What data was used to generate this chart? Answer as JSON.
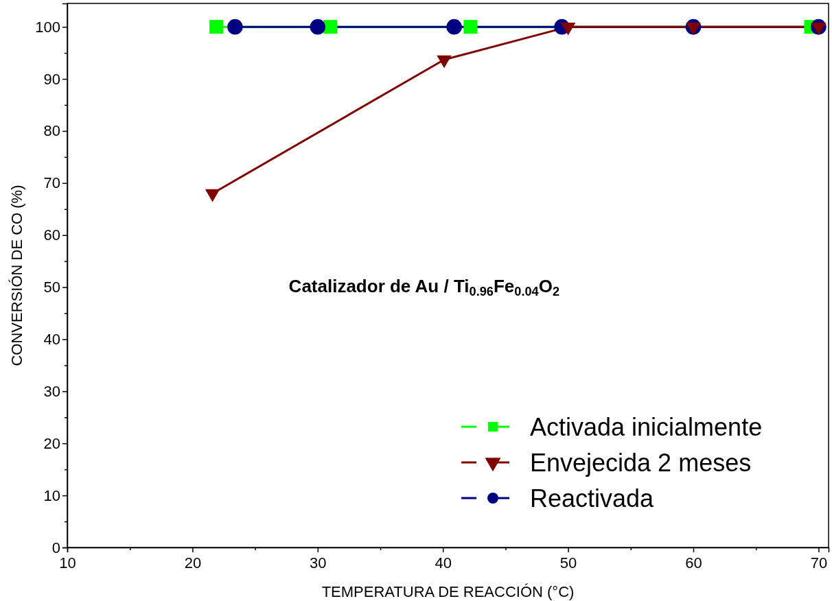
{
  "chart_data": {
    "type": "line",
    "xlabel": "TEMPERATURA DE REACCIÓN (°C)",
    "ylabel": "CONVERSIÓN DE CO (%)",
    "annotations": [
      {
        "text": "Catalizador de Au / Ti$_{0.96}$Fe$_{0.04}$O$_{2}$"
      }
    ],
    "xlim": [
      10,
      70.8
    ],
    "ylim": [
      0,
      104.5
    ],
    "xticks": [
      10,
      {
        "value": 15,
        "label": null
      },
      20,
      {
        "value": 25,
        "label": null
      },
      30,
      {
        "value": 35,
        "label": null
      },
      40,
      {
        "value": 45,
        "label": null
      },
      50,
      {
        "value": 55,
        "label": null
      },
      60,
      {
        "value": 65,
        "label": null
      },
      70
    ],
    "yticks": [
      0,
      {
        "value": 5,
        "label": null
      },
      10,
      {
        "value": 15,
        "label": null
      },
      20,
      {
        "value": 25,
        "label": null
      },
      30,
      {
        "value": 35,
        "label": null
      },
      40,
      {
        "value": 45,
        "label": null
      },
      50,
      {
        "value": 55,
        "label": null
      },
      60,
      {
        "value": 65,
        "label": null
      },
      70,
      {
        "value": 75,
        "label": null
      },
      80,
      {
        "value": 85,
        "label": null
      },
      90,
      {
        "value": 95,
        "label": null
      },
      100
    ],
    "grid": false,
    "legend": "bottom right",
    "line_style": "solid",
    "series": [
      {
        "name": "Activada inicialmente",
        "color": "#00ff00",
        "marker": "square",
        "x": [
          21.9,
          31.0,
          42.2,
          69.4
        ],
        "values": [
          100,
          100,
          100,
          100
        ]
      },
      {
        "name": "Envejecida 2 meses",
        "color": "#800000",
        "marker": "triangle",
        "x": [
          21.6,
          40.1,
          50.0,
          60.0,
          70.0
        ],
        "values": [
          68,
          93.7,
          100,
          100,
          100
        ]
      },
      {
        "name": "Reactivada",
        "color": "#000080",
        "marker": "circle",
        "x": [
          23.4,
          30.0,
          40.9,
          49.5,
          60.0,
          70.0
        ],
        "values": [
          100,
          100,
          100,
          100,
          100,
          100
        ]
      }
    ]
  }
}
